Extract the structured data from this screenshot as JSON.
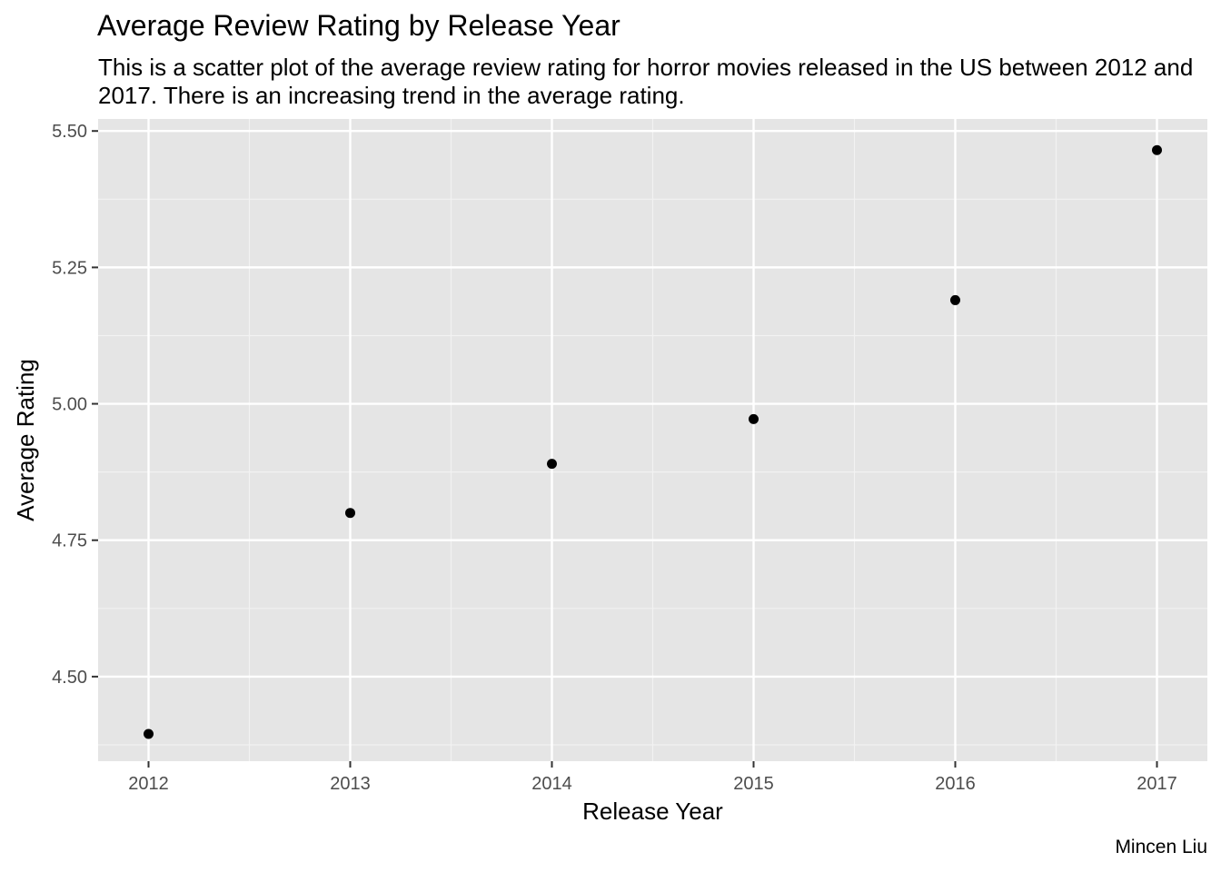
{
  "chart_data": {
    "type": "scatter",
    "title": "Average Review Rating by Release Year",
    "subtitle": "This is a scatter plot of the average review rating for horror movies released in the US between 2012 and 2017. There is an increasing trend in the average rating.",
    "caption": "Mincen Liu",
    "xlabel": "Release Year",
    "ylabel": "Average Rating",
    "x": [
      2012,
      2013,
      2014,
      2015,
      2016,
      2017
    ],
    "y": [
      4.395,
      4.8,
      4.89,
      4.972,
      5.19,
      5.465
    ],
    "xlim": [
      2011.75,
      2017.25
    ],
    "ylim": [
      4.345,
      5.522
    ],
    "x_ticks": [
      2012,
      2013,
      2014,
      2015,
      2016,
      2017
    ],
    "x_tick_labels": [
      "2012",
      "2013",
      "2014",
      "2015",
      "2016",
      "2017"
    ],
    "y_ticks": [
      4.5,
      4.75,
      5.0,
      5.25,
      5.5
    ],
    "y_tick_labels": [
      "4.50",
      "4.75",
      "5.00",
      "5.25",
      "5.50"
    ],
    "grid": true,
    "legend": "none",
    "colors": {
      "panel_background": "#e5e5e5",
      "grid_major": "#ffffff",
      "grid_minor": "#f2f2f2",
      "point": "#000000",
      "tick_label": "#4d4d4d",
      "tick_mark": "#333333"
    }
  }
}
